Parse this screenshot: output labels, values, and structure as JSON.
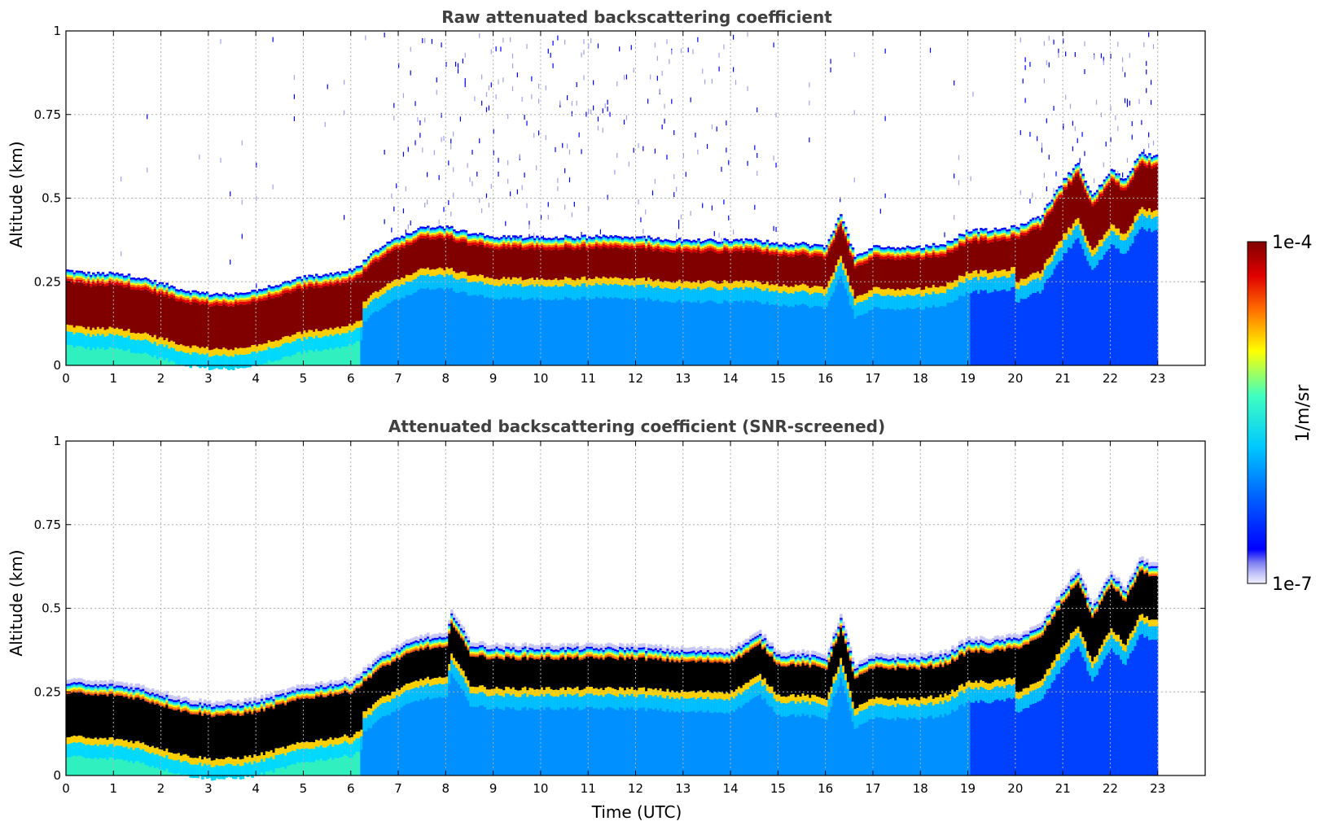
{
  "chart_data": [
    {
      "type": "heatmap",
      "title": "Raw attenuated backscattering coefficient",
      "ylabel": "Altitude (km)",
      "xlabel": "",
      "xlim": [
        0,
        24
      ],
      "ylim": [
        0,
        1
      ],
      "xticks": [
        "0",
        "1",
        "2",
        "3",
        "4",
        "5",
        "6",
        "7",
        "8",
        "9",
        "10",
        "11",
        "12",
        "13",
        "14",
        "15",
        "16",
        "17",
        "18",
        "19",
        "20",
        "21",
        "22",
        "23"
      ],
      "yticks": [
        "0",
        "0.25",
        "0.5",
        "0.75",
        "1"
      ],
      "grid": true,
      "variant": "raw",
      "data_end_time": 23,
      "layer": {
        "times": [
          0,
          0.5,
          1,
          1.5,
          2,
          2.5,
          3,
          3.5,
          4,
          4.5,
          5,
          5.5,
          6,
          6.2,
          6.5,
          7,
          7.5,
          8,
          8.5,
          9,
          10,
          11,
          12,
          13,
          14,
          14.5,
          15,
          15.5,
          16,
          16.3,
          16.6,
          17,
          17.5,
          18,
          18.5,
          19,
          19.5,
          20,
          20.5,
          21,
          21.3,
          21.6,
          22,
          22.3,
          22.6,
          23
        ],
        "top_km": [
          0.28,
          0.27,
          0.27,
          0.26,
          0.24,
          0.22,
          0.21,
          0.21,
          0.22,
          0.24,
          0.26,
          0.27,
          0.28,
          0.3,
          0.34,
          0.38,
          0.41,
          0.41,
          0.39,
          0.38,
          0.38,
          0.38,
          0.38,
          0.37,
          0.37,
          0.37,
          0.36,
          0.36,
          0.35,
          0.45,
          0.32,
          0.35,
          0.35,
          0.35,
          0.36,
          0.4,
          0.4,
          0.41,
          0.44,
          0.55,
          0.6,
          0.5,
          0.58,
          0.55,
          0.63,
          0.62
        ]
      }
    },
    {
      "type": "heatmap",
      "title": "Attenuated backscattering coefficient (SNR-screened)",
      "ylabel": "Altitude (km)",
      "xlabel": "Time (UTC)",
      "xlim": [
        0,
        24
      ],
      "ylim": [
        0,
        1
      ],
      "xticks": [
        "0",
        "1",
        "2",
        "3",
        "4",
        "5",
        "6",
        "7",
        "8",
        "9",
        "10",
        "11",
        "12",
        "13",
        "14",
        "15",
        "16",
        "17",
        "18",
        "19",
        "20",
        "21",
        "22",
        "23"
      ],
      "yticks": [
        "0",
        "0.25",
        "0.5",
        "0.75",
        "1"
      ],
      "grid": true,
      "variant": "screened",
      "data_end_time": 23,
      "layer": {
        "times": [
          0,
          0.5,
          1,
          1.5,
          2,
          2.5,
          3,
          3.5,
          4,
          4.5,
          5,
          5.5,
          6,
          6.2,
          6.5,
          7,
          7.5,
          8,
          8.1,
          8.5,
          9,
          10,
          11,
          12,
          13,
          14,
          14.6,
          15,
          15.5,
          16,
          16.3,
          16.6,
          17,
          17.5,
          18,
          18.5,
          19,
          19.5,
          20,
          20.5,
          21,
          21.3,
          21.6,
          22,
          22.3,
          22.6,
          23
        ],
        "top_km": [
          0.28,
          0.27,
          0.27,
          0.26,
          0.24,
          0.22,
          0.21,
          0.21,
          0.22,
          0.24,
          0.26,
          0.27,
          0.28,
          0.3,
          0.34,
          0.38,
          0.41,
          0.41,
          0.49,
          0.39,
          0.38,
          0.38,
          0.38,
          0.38,
          0.37,
          0.37,
          0.42,
          0.36,
          0.36,
          0.35,
          0.47,
          0.32,
          0.35,
          0.35,
          0.35,
          0.36,
          0.4,
          0.4,
          0.41,
          0.44,
          0.55,
          0.61,
          0.5,
          0.6,
          0.55,
          0.64,
          0.62
        ]
      }
    }
  ],
  "colorbar": {
    "label": "1/m/sr",
    "max_label": "1e-4",
    "min_label": "1e-7",
    "scale": "log"
  }
}
